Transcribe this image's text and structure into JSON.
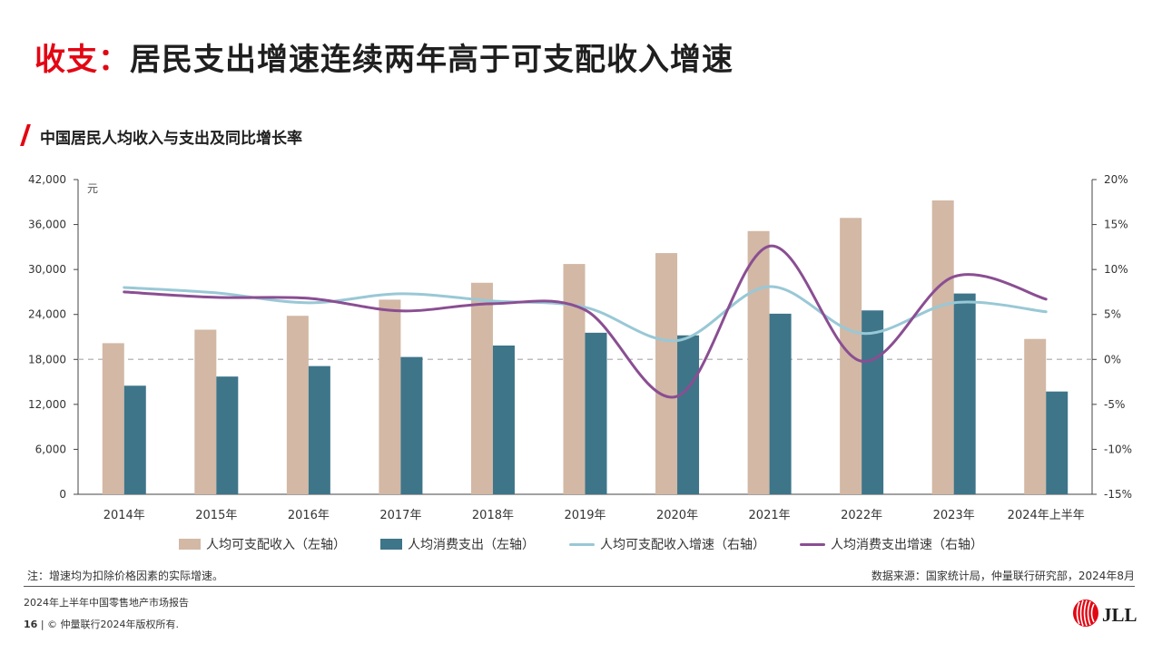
{
  "header": {
    "title_highlight": "收支：",
    "title_rest": "居民支出增速连续两年高于可支配收入增速",
    "subtitle": "中国居民人均收入与支出及同比增长率"
  },
  "colors": {
    "accent_red": "#e30613",
    "income_bar": "#d2b8a5",
    "expense_bar": "#3e7589",
    "income_growth_line": "#99c8d6",
    "expense_growth_line": "#8a4e92",
    "zero_line": "#bdbdbd"
  },
  "chart_data": {
    "type": "bar",
    "categories": [
      "2014年",
      "2015年",
      "2016年",
      "2017年",
      "2018年",
      "2019年",
      "2020年",
      "2021年",
      "2022年",
      "2023年",
      "2024年上半年"
    ],
    "y_left": {
      "unit_label": "元",
      "ylim": [
        0,
        42000
      ],
      "ticks": [
        "0",
        "6,000",
        "12,000",
        "18,000",
        "24,000",
        "30,000",
        "36,000",
        "42,000"
      ]
    },
    "y_right": {
      "ylim": [
        -15,
        20
      ],
      "ticks": [
        "-15%",
        "-10%",
        "-5%",
        "0%",
        "5%",
        "10%",
        "15%",
        "20%"
      ]
    },
    "series": [
      {
        "name": "人均可支配收入（左轴）",
        "kind": "bar",
        "axis": "left",
        "values": [
          20167,
          21966,
          23821,
          25974,
          28228,
          30733,
          32189,
          35128,
          36883,
          39218,
          20733
        ]
      },
      {
        "name": "人均消费支出（左轴）",
        "kind": "bar",
        "axis": "left",
        "values": [
          14491,
          15712,
          17111,
          18322,
          19853,
          21559,
          21210,
          24100,
          24538,
          26796,
          13716
        ]
      },
      {
        "name": "人均可支配收入增速（右轴）",
        "kind": "line",
        "axis": "right",
        "values": [
          8.0,
          7.4,
          6.3,
          7.3,
          6.5,
          5.8,
          2.1,
          8.1,
          2.9,
          6.3,
          5.3
        ]
      },
      {
        "name": "人均消费支出增速（右轴）",
        "kind": "line",
        "axis": "right",
        "values": [
          7.5,
          6.9,
          6.8,
          5.4,
          6.2,
          5.5,
          -4.1,
          12.6,
          -0.2,
          9.2,
          6.7
        ]
      }
    ],
    "grid": false,
    "legend_position": "bottom"
  },
  "footer": {
    "note": "注：增速均为扣除价格因素的实际增速。",
    "source": "数据来源：国家统计局，仲量联行研究部，2024年8月",
    "report": "2024年上半年中国零售地产市场报告",
    "page": "16",
    "copyright": "| © 仲量联行2024年版权所有.",
    "logo_text": "JLL"
  }
}
